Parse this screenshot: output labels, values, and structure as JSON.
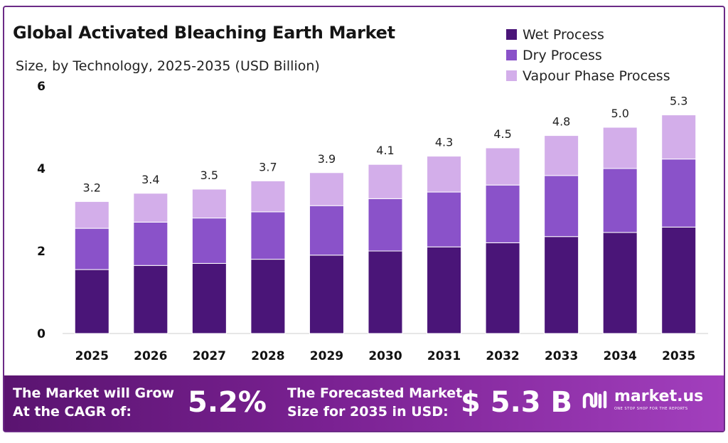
{
  "chart_data": {
    "type": "bar",
    "stacked": true,
    "title": "Global Activated Bleaching Earth Market",
    "subtitle": "Size, by Technology, 2025-2035 (USD Billion)",
    "xlabel": "",
    "ylabel": "",
    "categories": [
      "2025",
      "2026",
      "2027",
      "2028",
      "2029",
      "2030",
      "2031",
      "2032",
      "2033",
      "2034",
      "2035"
    ],
    "series": [
      {
        "name": "Wet Process",
        "color": "#4a1578",
        "values": [
          1.55,
          1.65,
          1.7,
          1.8,
          1.9,
          2.0,
          2.1,
          2.2,
          2.35,
          2.45,
          2.58
        ]
      },
      {
        "name": "Dry Process",
        "color": "#8a52c9",
        "values": [
          1.0,
          1.05,
          1.1,
          1.15,
          1.2,
          1.27,
          1.33,
          1.4,
          1.48,
          1.55,
          1.65
        ]
      },
      {
        "name": "Vapour Phase Process",
        "color": "#d3aeea",
        "values": [
          0.65,
          0.7,
          0.7,
          0.75,
          0.8,
          0.83,
          0.87,
          0.9,
          0.97,
          1.0,
          1.07
        ]
      }
    ],
    "totals": [
      "3.2",
      "3.4",
      "3.5",
      "3.7",
      "3.9",
      "4.1",
      "4.3",
      "4.5",
      "4.8",
      "5.0",
      "5.3"
    ],
    "ylim": [
      0,
      6
    ],
    "yticks": [
      "0",
      "2",
      "4",
      "6"
    ],
    "grid": false,
    "legend_position": "top-right"
  },
  "banner": {
    "cagr_line1": "The Market will Grow",
    "cagr_line2": "At the CAGR of:",
    "cagr_value": "5.2%",
    "forecast_line1": "The Forecasted Market",
    "forecast_line2": "Size for 2035 in USD:",
    "forecast_value": "$ 5.3 B",
    "logo_text": "market.us",
    "logo_tagline": "ONE STOP SHOP FOR THE REPORTS"
  },
  "colors": {
    "frame": "#6b2a86",
    "banner_start": "#5a1470",
    "banner_end": "#a23fbd"
  }
}
